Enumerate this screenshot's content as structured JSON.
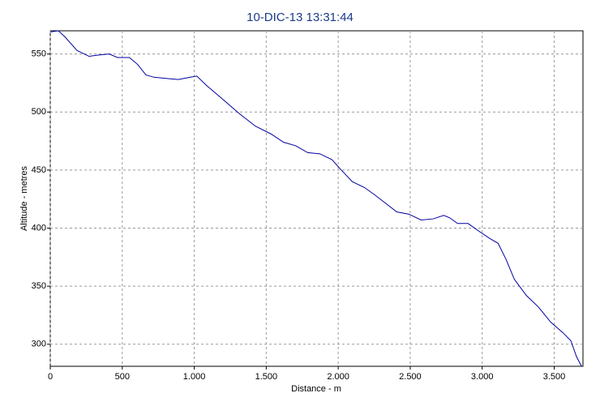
{
  "chart_data": {
    "type": "line",
    "title": "10-DIC-13 13:31:44",
    "xlabel": "Distance - m",
    "ylabel": "Altitude - metres",
    "x": [
      0,
      56,
      100,
      186,
      270,
      326,
      410,
      467,
      550,
      607,
      664,
      720,
      804,
      889,
      973,
      1018,
      1085,
      1198,
      1310,
      1423,
      1535,
      1620,
      1704,
      1789,
      1873,
      1957,
      2014,
      2098,
      2182,
      2250,
      2323,
      2407,
      2492,
      2576,
      2660,
      2733,
      2773,
      2829,
      2902,
      2970,
      3054,
      3110,
      3166,
      3223,
      3307,
      3391,
      3476,
      3560,
      3616,
      3656,
      3690
    ],
    "series": [
      {
        "color": "#0000a0",
        "values": [
          569,
          570,
          565,
          553,
          548,
          549,
          550,
          547,
          547,
          541,
          532,
          530,
          529,
          528,
          530,
          531,
          523,
          511,
          499,
          488,
          481,
          474,
          471,
          465,
          464,
          459,
          451,
          440,
          435,
          429,
          422,
          414,
          412,
          407,
          408,
          411,
          409,
          404,
          404,
          398,
          391,
          387,
          373,
          356,
          342,
          332,
          319,
          310,
          303,
          289,
          281
        ]
      }
    ],
    "xlim": [
      0,
      3700
    ],
    "ylim": [
      281,
      570
    ],
    "xticks": [
      0,
      500,
      {
        "value": 1000,
        "label": "1.000"
      },
      {
        "value": 1500,
        "label": "1.500"
      },
      {
        "value": 2000,
        "label": "2.000"
      },
      {
        "value": 2500,
        "label": "2.500"
      },
      {
        "value": 3000,
        "label": "3.000"
      },
      {
        "value": 3500,
        "label": "3.500"
      }
    ],
    "yticks": [
      300,
      350,
      400,
      450,
      500,
      550
    ],
    "grid": true
  }
}
